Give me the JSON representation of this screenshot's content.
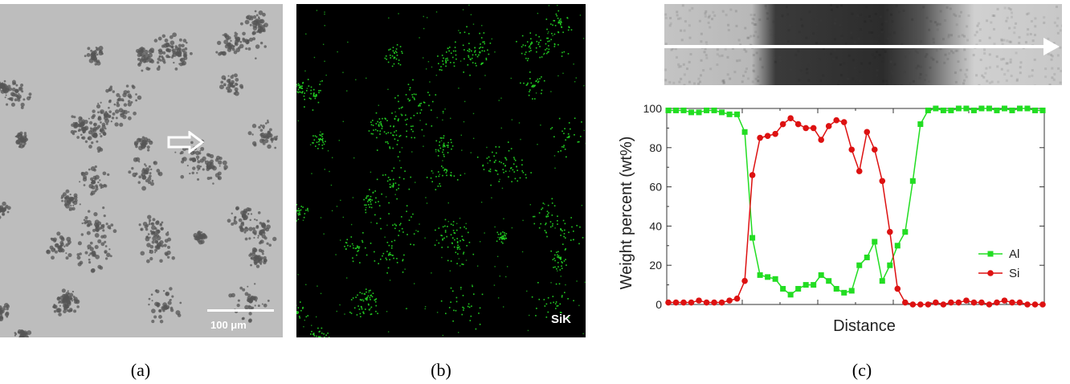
{
  "panel_a": {
    "scale_label": "100 μm"
  },
  "panel_b": {
    "element_label": "SiK"
  },
  "captions": {
    "a": "(a)",
    "b": "(b)",
    "c": "(c)"
  },
  "colors": {
    "al": "#22dd22",
    "si": "#dd1111",
    "eds_dots": "#22cc22",
    "sem_base": "#bdbdbd",
    "sem_particles": "#555555"
  },
  "chart_data": {
    "type": "line",
    "xlabel": "Distance",
    "ylabel": "Weight percent (wt%)",
    "ylim": [
      0,
      100
    ],
    "yticks": [
      0,
      20,
      40,
      60,
      80,
      100
    ],
    "grid": false,
    "legend_position": "bottom-right",
    "x": [
      0,
      1,
      2,
      3,
      4,
      5,
      6,
      7,
      8,
      9,
      10,
      11,
      12,
      13,
      14,
      15,
      16,
      17,
      18,
      19,
      20,
      21,
      22,
      23,
      24,
      25,
      26,
      27,
      28,
      29,
      30,
      31,
      32,
      33,
      34,
      35,
      36,
      37,
      38,
      39,
      40,
      41,
      42,
      43,
      44,
      45,
      46,
      47,
      48,
      49
    ],
    "series": [
      {
        "name": "Al",
        "color": "#22dd22",
        "marker": "square",
        "values": [
          99,
          99,
          99,
          98,
          98,
          99,
          99,
          98,
          97,
          97,
          88,
          34,
          15,
          14,
          13,
          8,
          5,
          8,
          10,
          10,
          15,
          12,
          8,
          6,
          7,
          20,
          24,
          32,
          12,
          20,
          30,
          37,
          63,
          92,
          99,
          100,
          99,
          99,
          100,
          100,
          99,
          100,
          100,
          99,
          100,
          99,
          100,
          100,
          99,
          99
        ]
      },
      {
        "name": "Si",
        "color": "#dd1111",
        "marker": "circle",
        "values": [
          1,
          1,
          1,
          1,
          2,
          1,
          1,
          1,
          2,
          3,
          12,
          66,
          85,
          86,
          87,
          92,
          95,
          92,
          90,
          90,
          84,
          91,
          94,
          93,
          79,
          68,
          88,
          79,
          63,
          37,
          8,
          1,
          0,
          0,
          0,
          1,
          0,
          1,
          1,
          2,
          1,
          1,
          0,
          1,
          2,
          1,
          1,
          0,
          0,
          0
        ]
      }
    ]
  }
}
